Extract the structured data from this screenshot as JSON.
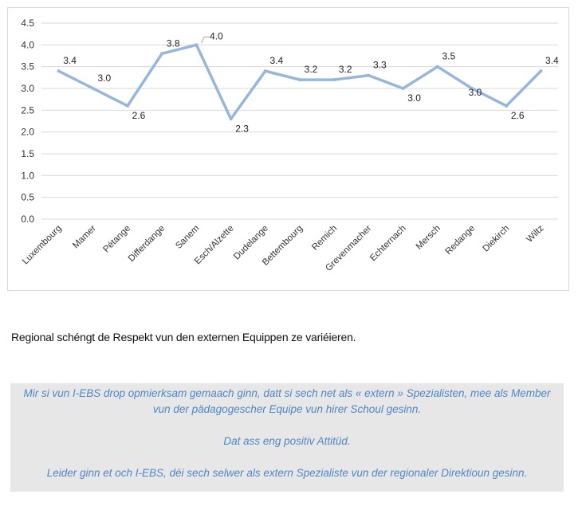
{
  "chart_data": {
    "type": "line",
    "title": "",
    "xlabel": "",
    "ylabel": "",
    "ylim": [
      0,
      4.5
    ],
    "yticks": [
      "0.0",
      "0.5",
      "1.0",
      "1.5",
      "2.0",
      "2.5",
      "3.0",
      "3.5",
      "4.0",
      "4.5"
    ],
    "grid": true,
    "categories": [
      "Luxembourg",
      "Mamer",
      "Pétange",
      "Differdange",
      "Sanem",
      "Esch/Alzette",
      "Dudelange",
      "Bettembourg",
      "Remich",
      "Grevenmacher",
      "Echternach",
      "Mersch",
      "Redange",
      "Diekirch",
      "Wiltz"
    ],
    "values": [
      3.4,
      3.0,
      2.6,
      3.8,
      4.0,
      2.3,
      3.4,
      3.2,
      3.2,
      3.3,
      3.0,
      3.5,
      3.0,
      2.6,
      3.4
    ],
    "data_labels": [
      "3.4",
      "3.0",
      "2.6",
      "3.8",
      "4.0",
      "2.3",
      "3.4",
      "3.2",
      "3.2",
      "3.3",
      "3.0",
      "3.5",
      "3.0",
      "2.6",
      "3.4"
    ],
    "line_color": "#97b6dc"
  },
  "caption": "Regional schéngt de Respekt vun den externen Equippen ze variéieren.",
  "note": {
    "line1": "Mir si vun  I-EBS drop opmierksam gemaach ginn, datt si sech net als « extern » Spezialisten, mee als Member",
    "line2": "vun der pädagogescher Equipe vun hirer Schoul gesinn.",
    "line3": "Dat ass eng positiv Attitüd.",
    "line4": "Leider ginn et och I-EBS, déi sech selwer als extern Spezialiste vun der regionaler Direktioun gesinn.",
    "text_color": "#4f86c6",
    "background": "#e8e7e7"
  }
}
